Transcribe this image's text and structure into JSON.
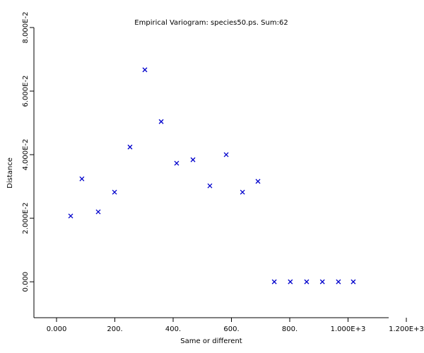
{
  "chart_data": {
    "type": "scatter",
    "title": "Empirical Variogram: species50.ps. Sum:62",
    "x_label": "Same or different",
    "y_label": "Distance",
    "marker": "x",
    "color": "#0000cc",
    "x": [
      48.5,
      87,
      143,
      199,
      252,
      303,
      359,
      412,
      468,
      526,
      582,
      638,
      691,
      747,
      802,
      858,
      912,
      967,
      1018
    ],
    "values": [
      0.0207,
      0.0324,
      0.022,
      0.0282,
      0.0424,
      0.0667,
      0.0504,
      0.0373,
      0.0384,
      0.0302,
      0.04,
      0.0282,
      0.0316,
      0,
      0,
      0,
      0,
      0,
      0
    ],
    "xlim": [
      -77.6,
      1139.4
    ],
    "ylim": [
      -0.0113,
      0.08
    ],
    "xticks": [
      {
        "value": 0,
        "label": "0.000"
      },
      {
        "value": 200,
        "label": "200."
      },
      {
        "value": 400,
        "label": "400."
      },
      {
        "value": 600,
        "label": "600."
      },
      {
        "value": 800,
        "label": "800."
      },
      {
        "value": 1000,
        "label": "1.000E+3"
      },
      {
        "value": 1200,
        "label": "1.200E+3"
      }
    ],
    "yticks": [
      {
        "value": 0,
        "label": "0.000"
      },
      {
        "value": 0.02,
        "label": "2.000E-2"
      },
      {
        "value": 0.04,
        "label": "4.000E-2"
      },
      {
        "value": 0.06,
        "label": "6.000E-2"
      },
      {
        "value": 0.08,
        "label": "8.000E-2"
      }
    ],
    "grid": false
  }
}
